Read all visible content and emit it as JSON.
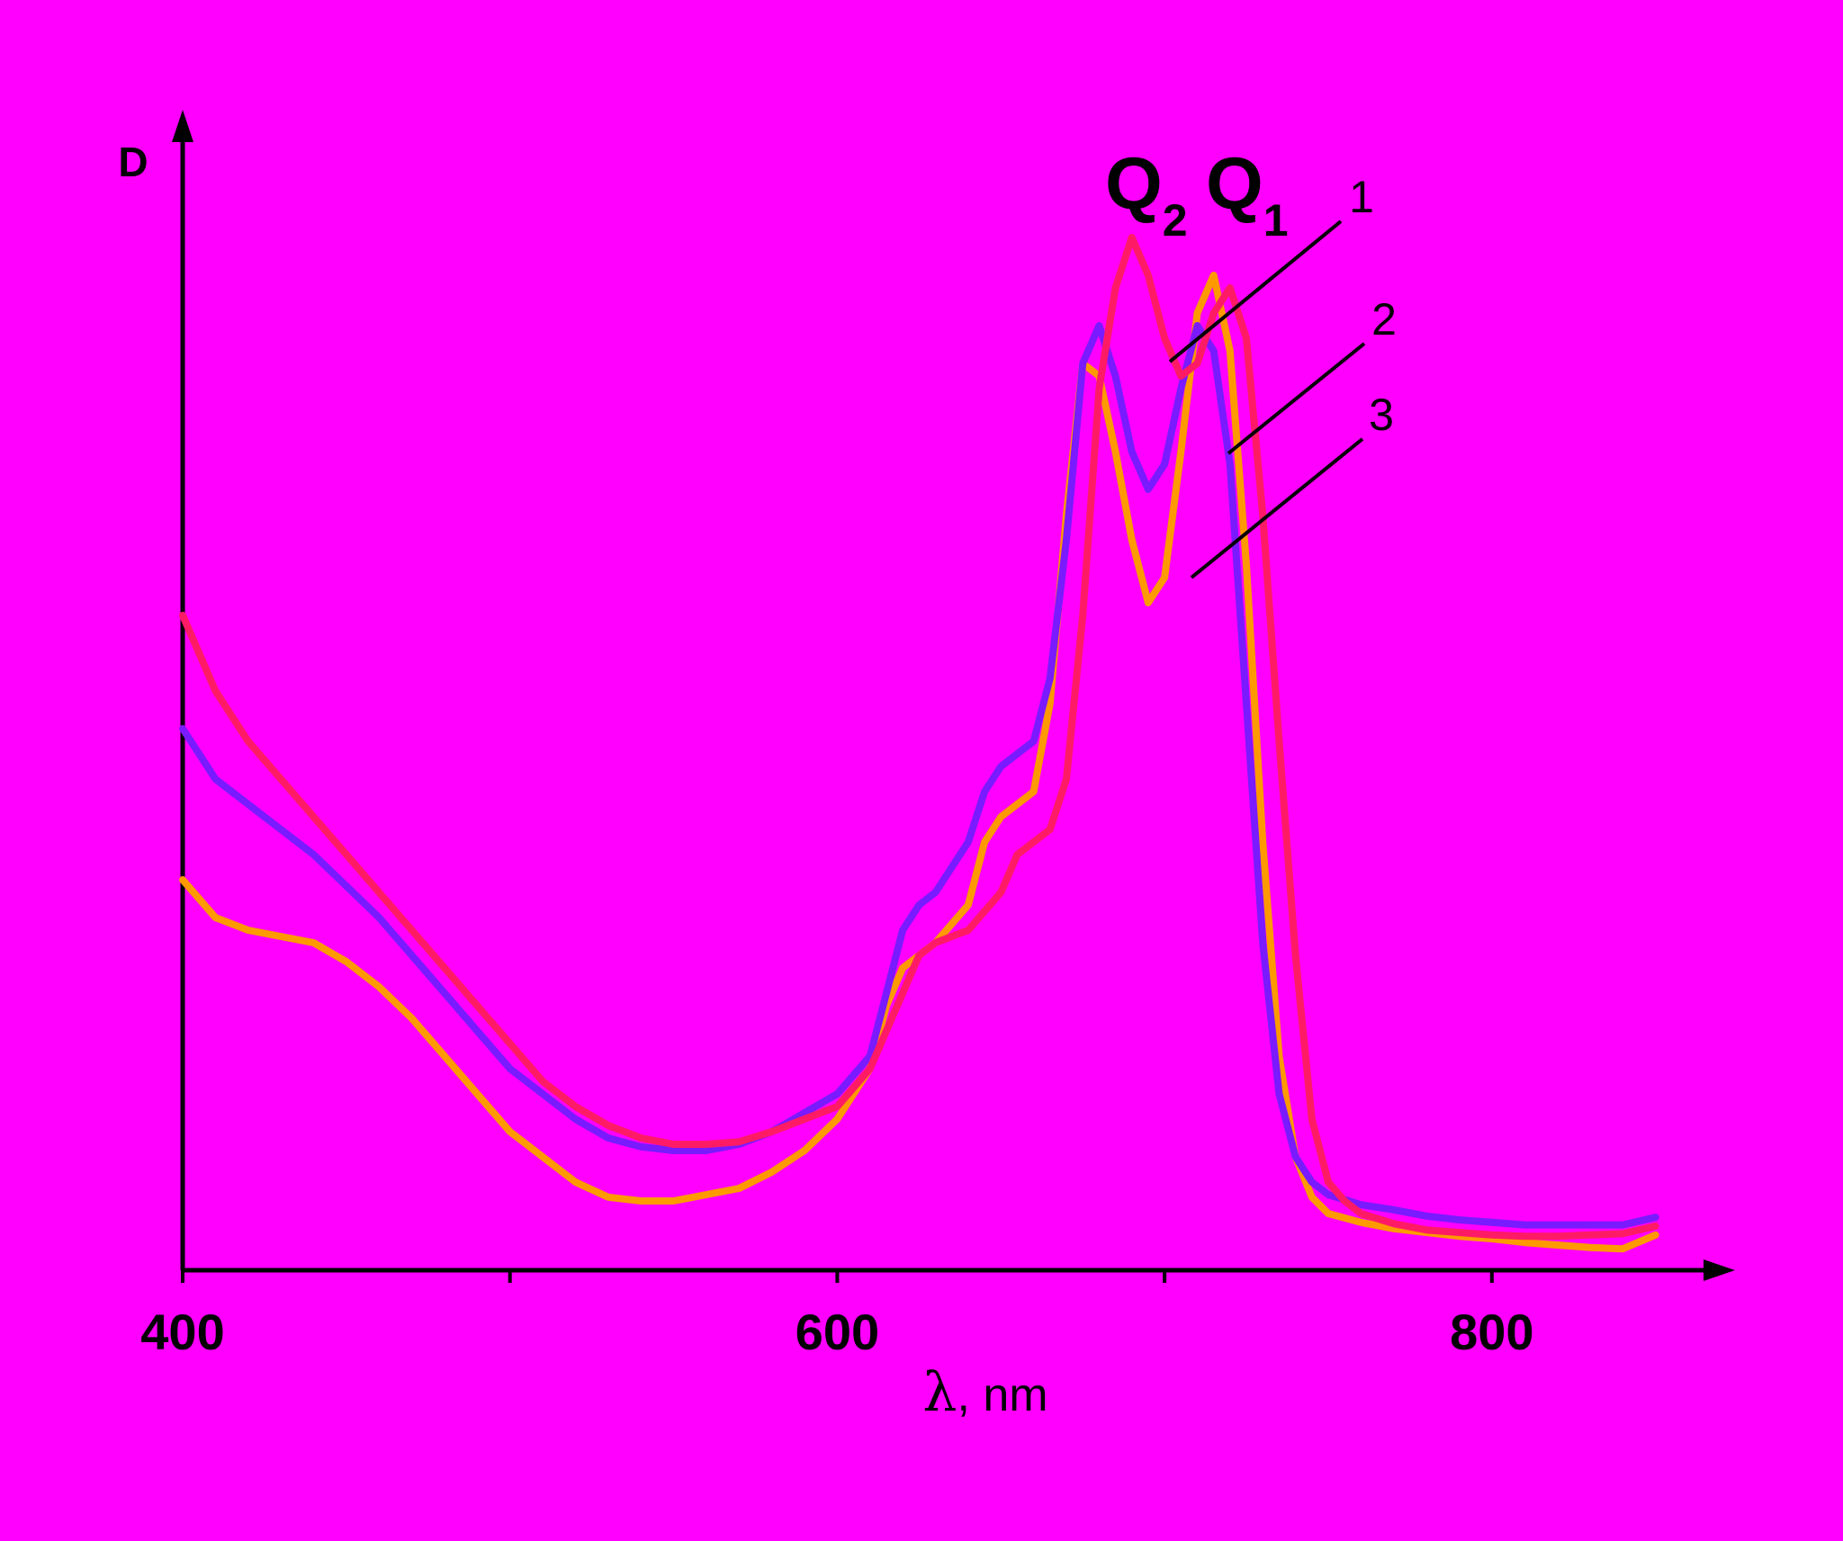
{
  "chart_data": {
    "type": "line",
    "ylabel": "D",
    "xlabel_symbol": "λ",
    "xlabel_unit": ", nm",
    "xlim": [
      400,
      880
    ],
    "ylim": [
      0,
      1.0
    ],
    "x_ticks": [
      400,
      500,
      600,
      700,
      800
    ],
    "x_tick_labels": [
      {
        "value": 400,
        "label": "400"
      },
      {
        "value": 600,
        "label": "600"
      },
      {
        "value": 800,
        "label": "800"
      }
    ],
    "peak_labels": [
      {
        "letter": "Q",
        "sub": "2",
        "x": 690
      },
      {
        "letter": "Q",
        "sub": "1",
        "x": 720
      }
    ],
    "series": [
      {
        "label": "1",
        "color": "#ff1a66",
        "points": [
          [
            400,
            0.52
          ],
          [
            410,
            0.46
          ],
          [
            420,
            0.42
          ],
          [
            430,
            0.39
          ],
          [
            440,
            0.36
          ],
          [
            450,
            0.33
          ],
          [
            460,
            0.3
          ],
          [
            470,
            0.27
          ],
          [
            480,
            0.24
          ],
          [
            490,
            0.21
          ],
          [
            500,
            0.18
          ],
          [
            510,
            0.15
          ],
          [
            520,
            0.13
          ],
          [
            530,
            0.115
          ],
          [
            540,
            0.105
          ],
          [
            550,
            0.1
          ],
          [
            560,
            0.1
          ],
          [
            570,
            0.102
          ],
          [
            580,
            0.11
          ],
          [
            590,
            0.12
          ],
          [
            600,
            0.13
          ],
          [
            610,
            0.16
          ],
          [
            620,
            0.22
          ],
          [
            625,
            0.25
          ],
          [
            630,
            0.26
          ],
          [
            640,
            0.27
          ],
          [
            650,
            0.3
          ],
          [
            655,
            0.33
          ],
          [
            660,
            0.34
          ],
          [
            665,
            0.35
          ],
          [
            670,
            0.39
          ],
          [
            675,
            0.52
          ],
          [
            680,
            0.7
          ],
          [
            685,
            0.78
          ],
          [
            690,
            0.82
          ],
          [
            695,
            0.79
          ],
          [
            700,
            0.74
          ],
          [
            705,
            0.71
          ],
          [
            710,
            0.72
          ],
          [
            715,
            0.76
          ],
          [
            720,
            0.78
          ],
          [
            725,
            0.74
          ],
          [
            730,
            0.6
          ],
          [
            735,
            0.42
          ],
          [
            740,
            0.25
          ],
          [
            745,
            0.12
          ],
          [
            750,
            0.07
          ],
          [
            755,
            0.055
          ],
          [
            760,
            0.045
          ],
          [
            770,
            0.037
          ],
          [
            780,
            0.032
          ],
          [
            790,
            0.03
          ],
          [
            800,
            0.028
          ],
          [
            810,
            0.027
          ],
          [
            820,
            0.027
          ],
          [
            830,
            0.028
          ],
          [
            840,
            0.029
          ],
          [
            850,
            0.035
          ]
        ]
      },
      {
        "label": "2",
        "color": "#7a1aff",
        "points": [
          [
            400,
            0.43
          ],
          [
            410,
            0.39
          ],
          [
            420,
            0.37
          ],
          [
            430,
            0.35
          ],
          [
            440,
            0.33
          ],
          [
            450,
            0.305
          ],
          [
            460,
            0.28
          ],
          [
            470,
            0.25
          ],
          [
            480,
            0.22
          ],
          [
            490,
            0.19
          ],
          [
            500,
            0.16
          ],
          [
            510,
            0.14
          ],
          [
            520,
            0.12
          ],
          [
            530,
            0.105
          ],
          [
            540,
            0.098
          ],
          [
            550,
            0.095
          ],
          [
            560,
            0.095
          ],
          [
            570,
            0.1
          ],
          [
            580,
            0.11
          ],
          [
            590,
            0.125
          ],
          [
            600,
            0.14
          ],
          [
            610,
            0.17
          ],
          [
            615,
            0.22
          ],
          [
            620,
            0.27
          ],
          [
            625,
            0.29
          ],
          [
            630,
            0.3
          ],
          [
            640,
            0.34
          ],
          [
            645,
            0.38
          ],
          [
            650,
            0.4
          ],
          [
            655,
            0.41
          ],
          [
            660,
            0.42
          ],
          [
            665,
            0.47
          ],
          [
            670,
            0.58
          ],
          [
            675,
            0.72
          ],
          [
            680,
            0.75
          ],
          [
            685,
            0.71
          ],
          [
            690,
            0.65
          ],
          [
            695,
            0.62
          ],
          [
            700,
            0.64
          ],
          [
            705,
            0.7
          ],
          [
            710,
            0.75
          ],
          [
            715,
            0.73
          ],
          [
            720,
            0.64
          ],
          [
            725,
            0.45
          ],
          [
            730,
            0.26
          ],
          [
            735,
            0.14
          ],
          [
            740,
            0.09
          ],
          [
            745,
            0.07
          ],
          [
            750,
            0.06
          ],
          [
            760,
            0.052
          ],
          [
            770,
            0.048
          ],
          [
            780,
            0.043
          ],
          [
            790,
            0.04
          ],
          [
            800,
            0.038
          ],
          [
            810,
            0.036
          ],
          [
            820,
            0.036
          ],
          [
            830,
            0.036
          ],
          [
            840,
            0.036
          ],
          [
            850,
            0.042
          ]
        ]
      },
      {
        "label": "3",
        "color": "#ff9900",
        "points": [
          [
            400,
            0.31
          ],
          [
            410,
            0.28
          ],
          [
            420,
            0.27
          ],
          [
            430,
            0.265
          ],
          [
            440,
            0.26
          ],
          [
            450,
            0.245
          ],
          [
            460,
            0.225
          ],
          [
            470,
            0.2
          ],
          [
            480,
            0.17
          ],
          [
            490,
            0.14
          ],
          [
            500,
            0.11
          ],
          [
            510,
            0.09
          ],
          [
            520,
            0.07
          ],
          [
            530,
            0.058
          ],
          [
            540,
            0.055
          ],
          [
            550,
            0.055
          ],
          [
            560,
            0.06
          ],
          [
            570,
            0.065
          ],
          [
            580,
            0.078
          ],
          [
            590,
            0.095
          ],
          [
            600,
            0.12
          ],
          [
            610,
            0.16
          ],
          [
            615,
            0.21
          ],
          [
            620,
            0.24
          ],
          [
            625,
            0.25
          ],
          [
            630,
            0.26
          ],
          [
            640,
            0.29
          ],
          [
            645,
            0.34
          ],
          [
            650,
            0.36
          ],
          [
            655,
            0.37
          ],
          [
            660,
            0.38
          ],
          [
            665,
            0.45
          ],
          [
            670,
            0.6
          ],
          [
            675,
            0.72
          ],
          [
            680,
            0.71
          ],
          [
            685,
            0.65
          ],
          [
            690,
            0.58
          ],
          [
            695,
            0.53
          ],
          [
            700,
            0.55
          ],
          [
            705,
            0.65
          ],
          [
            710,
            0.76
          ],
          [
            715,
            0.79
          ],
          [
            720,
            0.73
          ],
          [
            725,
            0.56
          ],
          [
            730,
            0.34
          ],
          [
            735,
            0.17
          ],
          [
            740,
            0.09
          ],
          [
            745,
            0.058
          ],
          [
            750,
            0.045
          ],
          [
            760,
            0.038
          ],
          [
            770,
            0.033
          ],
          [
            780,
            0.03
          ],
          [
            790,
            0.027
          ],
          [
            800,
            0.025
          ],
          [
            810,
            0.022
          ],
          [
            820,
            0.02
          ],
          [
            830,
            0.018
          ],
          [
            840,
            0.017
          ],
          [
            850,
            0.028
          ]
        ]
      }
    ],
    "curve_labels": [
      {
        "text": "1",
        "series": 0
      },
      {
        "text": "2",
        "series": 1
      },
      {
        "text": "3",
        "series": 2
      }
    ]
  }
}
